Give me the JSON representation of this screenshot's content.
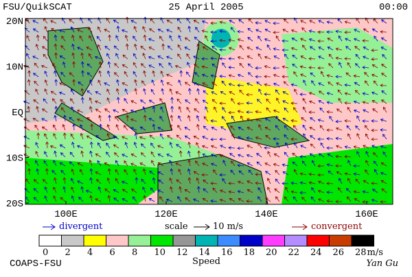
{
  "header": {
    "left": "FSU/QuikSCAT",
    "center": "25 April 2005",
    "right": "00:00"
  },
  "map": {
    "lat_labels": [
      "20N",
      "10N",
      "EQ",
      "10S",
      "20S"
    ],
    "lon_labels": [
      "100E",
      "120E",
      "140E",
      "160E"
    ]
  },
  "legend": {
    "divergent": "divergent",
    "scale": "scale",
    "scale_value": "10 m/s",
    "convergent": "convergent"
  },
  "colorbar": {
    "ticks": [
      0,
      2,
      4,
      6,
      8,
      10,
      12,
      14,
      16,
      18,
      20,
      22,
      24,
      26,
      28
    ],
    "unit": "m/s",
    "title": "Speed",
    "colors": [
      "#ffffff",
      "#c8c8c8",
      "#ffff00",
      "#ffc8c8",
      "#96f096",
      "#00e600",
      "#969696",
      "#00b4b4",
      "#3c8cff",
      "#0000c8",
      "#ff3cff",
      "#b48cff",
      "#ff0000",
      "#c83c00",
      "#000000"
    ]
  },
  "footer": {
    "left": "COAPS-FSU",
    "right": "Yan Gu"
  }
}
